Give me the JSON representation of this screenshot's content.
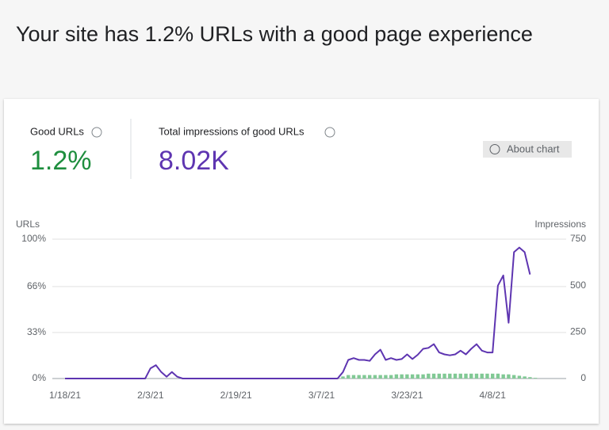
{
  "title": "Your site has 1.2% URLs with a good page experience",
  "metrics": [
    {
      "label": "Good URLs",
      "value": "1.2%"
    },
    {
      "label": "Total impressions of good URLs",
      "value": "8.02K"
    }
  ],
  "about_button": "About chart",
  "chart_data": {
    "type": "combo",
    "y_label": "URLs",
    "y2_label": "Impressions",
    "categories": [
      "1/18/21",
      null,
      null,
      null,
      null,
      null,
      null,
      null,
      null,
      null,
      null,
      null,
      null,
      null,
      null,
      null,
      "2/3/21",
      null,
      null,
      null,
      null,
      null,
      null,
      null,
      null,
      null,
      null,
      null,
      null,
      null,
      null,
      null,
      "2/19/21",
      null,
      null,
      null,
      null,
      null,
      null,
      null,
      null,
      null,
      null,
      null,
      null,
      null,
      null,
      null,
      "3/7/21",
      null,
      null,
      null,
      null,
      null,
      null,
      null,
      null,
      null,
      null,
      null,
      null,
      null,
      null,
      null,
      "3/23/21",
      null,
      null,
      null,
      null,
      null,
      null,
      null,
      null,
      null,
      null,
      null,
      null,
      null,
      null,
      null,
      "4/8/21",
      null,
      null,
      null,
      null,
      null,
      null,
      null,
      null
    ],
    "ylim": [
      0,
      100
    ],
    "yticks": [
      {
        "value": 0,
        "label": "0%"
      },
      {
        "value": 33,
        "label": "33%"
      },
      {
        "value": 66,
        "label": "66%"
      },
      {
        "value": 100,
        "label": "100%"
      }
    ],
    "y2lim": [
      0,
      750
    ],
    "y2ticks": [
      0,
      250,
      500,
      750
    ],
    "grid": true,
    "series": [
      {
        "type": "bar",
        "color": "#81c995",
        "values": [
          0,
          0,
          0,
          0,
          0,
          0,
          0,
          0,
          0,
          0,
          0,
          0,
          0,
          0,
          0,
          0,
          0,
          0,
          0,
          0,
          0,
          0,
          0,
          0,
          0,
          0,
          0,
          0,
          0,
          0,
          0,
          0,
          0,
          0,
          0,
          0,
          0,
          0,
          0,
          0,
          0,
          0,
          0,
          0,
          0,
          0,
          0,
          0,
          0,
          0,
          0,
          0,
          1.5,
          2.5,
          2.5,
          2.5,
          2.5,
          2.5,
          2.5,
          2.5,
          2.5,
          2.5,
          3,
          3,
          3,
          3,
          3,
          3,
          3.5,
          3.5,
          3.5,
          3.5,
          3.5,
          3.5,
          3.5,
          3.5,
          3.5,
          3.5,
          3.5,
          3.5,
          3.5,
          3.5,
          3,
          3,
          2.5,
          2,
          1.5,
          1,
          0.5
        ]
      },
      {
        "type": "line",
        "axis": "y2",
        "color": "#5e35b1",
        "values": [
          0,
          0,
          0,
          0,
          0,
          0,
          0,
          0,
          0,
          0,
          0,
          0,
          0,
          0,
          0,
          0,
          55,
          72,
          35,
          10,
          35,
          10,
          0,
          0,
          0,
          0,
          0,
          0,
          0,
          0,
          0,
          0,
          0,
          0,
          0,
          0,
          0,
          0,
          0,
          0,
          0,
          0,
          0,
          0,
          0,
          0,
          0,
          0,
          0,
          0,
          0,
          0,
          35,
          100,
          110,
          100,
          100,
          95,
          130,
          155,
          100,
          110,
          100,
          105,
          130,
          105,
          128,
          160,
          165,
          185,
          140,
          130,
          125,
          130,
          150,
          130,
          160,
          185,
          150,
          140,
          140,
          500,
          555,
          300,
          680,
          705,
          680,
          560,
          null
        ]
      }
    ]
  }
}
